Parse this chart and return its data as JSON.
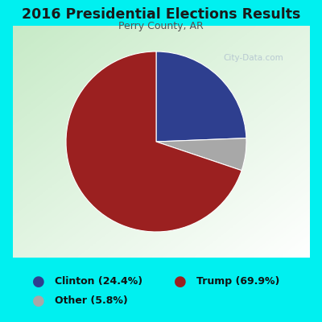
{
  "title": "2016 Presidential Elections Results",
  "subtitle": "Perry County, AR",
  "labels": [
    "Clinton",
    "Trump",
    "Other"
  ],
  "values": [
    24.4,
    69.9,
    5.8
  ],
  "colors": [
    "#2e3f8f",
    "#9b2020",
    "#a8a8a8"
  ],
  "legend_labels": [
    "Clinton (24.4%)",
    "Trump (69.9%)",
    "Other (5.8%)"
  ],
  "background_color": "#00f0f0",
  "title_color": "#1a1a1a",
  "subtitle_color": "#555555",
  "startangle": 90,
  "watermark": "City-Data.com"
}
